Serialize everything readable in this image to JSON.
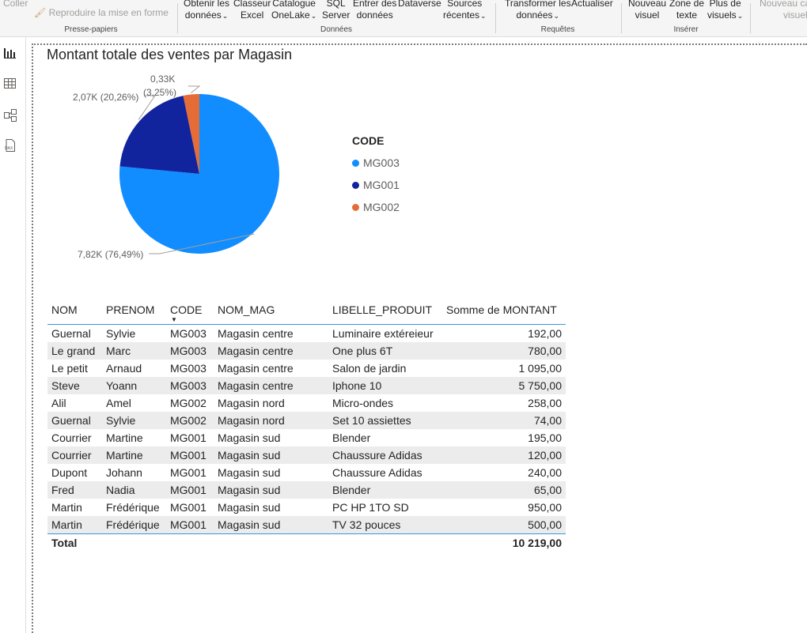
{
  "ribbon": {
    "coller": "Coller",
    "reproduire": "Reproduire la mise en forme",
    "presse_papiers": "Presse-papiers",
    "obtenir": [
      "Obtenir les",
      "données"
    ],
    "classeur": [
      "Classeur",
      "Excel"
    ],
    "catalogue": [
      "Catalogue",
      "OneLake"
    ],
    "sql": [
      "SQL",
      "Server"
    ],
    "entrer": [
      "Entrer des",
      "données"
    ],
    "dataverse": "Dataverse",
    "sources": [
      "Sources",
      "récentes"
    ],
    "donnees": "Données",
    "transformer": [
      "Transformer les",
      "données"
    ],
    "actualiser": "Actualiser",
    "requetes": "Requêtes",
    "nouveau_visuel": [
      "Nouveau",
      "visuel"
    ],
    "zone_texte": [
      "Zone de",
      "texte"
    ],
    "plus_visuels": [
      "Plus de",
      "visuels"
    ],
    "inserer": "Insérer",
    "nouveau_calc": [
      "Nouveau ca",
      "visuel"
    ]
  },
  "visual": {
    "title": "Montant totale des ventes par Magasin"
  },
  "chart_data": {
    "type": "pie",
    "title": "Montant totale des ventes par Magasin",
    "legend_title": "CODE",
    "legend_position": "right",
    "slices": [
      {
        "label": "MG003",
        "value": 7817,
        "display": "7,82K (76,49%)",
        "color": "#118dff"
      },
      {
        "label": "MG001",
        "value": 2070,
        "display": "2,07K (20,26%)",
        "color": "#12239e"
      },
      {
        "label": "MG002",
        "value": 332,
        "display_value": "0,33K",
        "display_pct": "(3,25%)",
        "color": "#e66c37"
      }
    ]
  },
  "table": {
    "headers": [
      "NOM",
      "PRENOM",
      "CODE",
      "NOM_MAG",
      "LIBELLE_PRODUIT",
      "Somme de MONTANT"
    ],
    "rows": [
      [
        "Guernal",
        "Sylvie",
        "MG003",
        "Magasin centre",
        "Luminaire extéreieur",
        "192,00"
      ],
      [
        "Le grand",
        "Marc",
        "MG003",
        "Magasin centre",
        "One plus 6T",
        "780,00"
      ],
      [
        "Le petit",
        "Arnaud",
        "MG003",
        "Magasin centre",
        "Salon de jardin",
        "1 095,00"
      ],
      [
        "Steve",
        "Yoann",
        "MG003",
        "Magasin centre",
        "Iphone 10",
        "5 750,00"
      ],
      [
        "Alil",
        "Amel",
        "MG002",
        "Magasin nord",
        "Micro-ondes",
        "258,00"
      ],
      [
        "Guernal",
        "Sylvie",
        "MG002",
        "Magasin nord",
        "Set 10 assiettes",
        "74,00"
      ],
      [
        "Courrier",
        "Martine",
        "MG001",
        "Magasin sud",
        "Blender",
        "195,00"
      ],
      [
        "Courrier",
        "Martine",
        "MG001",
        "Magasin sud",
        "Chaussure Adidas",
        "120,00"
      ],
      [
        "Dupont",
        "Johann",
        "MG001",
        "Magasin sud",
        "Chaussure Adidas",
        "240,00"
      ],
      [
        "Fred",
        "Nadia",
        "MG001",
        "Magasin sud",
        "Blender",
        "65,00"
      ],
      [
        "Martin",
        "Frédérique",
        "MG001",
        "Magasin sud",
        "PC HP 1TO SD",
        "950,00"
      ],
      [
        "Martin",
        "Frédérique",
        "MG001",
        "Magasin sud",
        "TV 32 pouces",
        "500,00"
      ]
    ],
    "total_label": "Total",
    "total_value": "10 219,00"
  },
  "nav": {
    "icons": [
      "report-view-icon",
      "table-view-icon",
      "model-view-icon",
      "dax-query-icon"
    ]
  }
}
